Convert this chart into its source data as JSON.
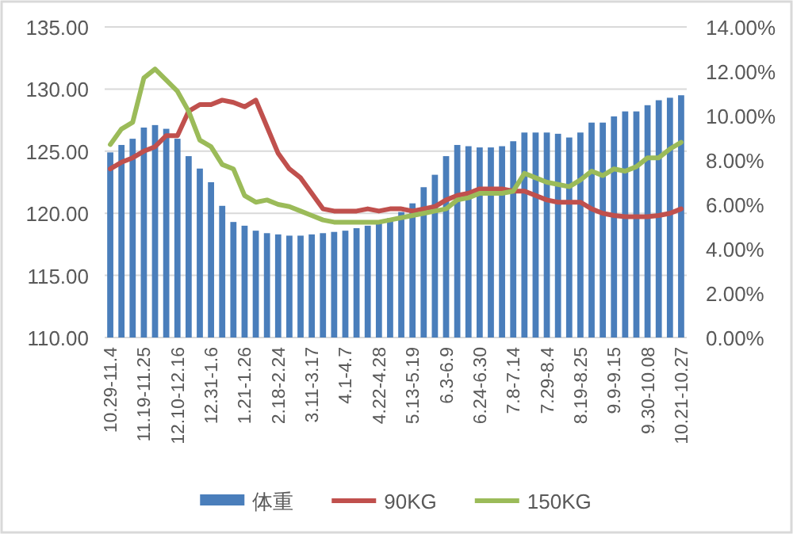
{
  "chart_data": {
    "type": "bar",
    "categories": [
      "10.29-11.4",
      null,
      null,
      "11.19-11.25",
      null,
      null,
      "12.10-12.16",
      null,
      null,
      "12.31-1.6",
      null,
      null,
      "1.21-1.26",
      null,
      null,
      "2.18-2.24",
      null,
      null,
      "3.11-3.17",
      null,
      null,
      "4.1-4.7",
      null,
      null,
      "4.22-4.28",
      null,
      null,
      "5.13-5.19",
      null,
      null,
      "6.3-6.9",
      null,
      null,
      "6.24-6.30",
      null,
      null,
      "7.8-7.14",
      null,
      null,
      "7.29-8.4",
      null,
      null,
      "8.19-8.25",
      null,
      null,
      "9.9-9.15",
      null,
      null,
      "9.30-10.08",
      null,
      null,
      "10.21-10.27"
    ],
    "series": [
      {
        "name": "体重",
        "color": "#4a7ebb",
        "values": [
          124.9,
          125.5,
          126.0,
          126.9,
          127.1,
          126.8,
          126.0,
          124.6,
          123.6,
          122.5,
          120.6,
          119.3,
          119.0,
          118.6,
          118.4,
          118.3,
          118.2,
          118.2,
          118.3,
          118.4,
          118.5,
          118.6,
          118.8,
          119.0,
          119.3,
          119.6,
          120.1,
          120.8,
          122.1,
          123.1,
          124.6,
          125.5,
          125.4,
          125.3,
          125.3,
          125.4,
          125.8,
          126.5,
          126.5,
          126.5,
          126.4,
          126.1,
          126.5,
          127.3,
          127.3,
          127.8,
          128.2,
          128.2,
          128.7,
          129.1,
          129.3,
          129.5
        ]
      },
      {
        "name": "90KG",
        "type": "line",
        "axis": "y2",
        "color": "#c0504d",
        "values": [
          7.6,
          7.9,
          8.1,
          8.4,
          8.6,
          9.1,
          9.1,
          10.2,
          10.5,
          10.5,
          10.7,
          10.6,
          10.4,
          10.7,
          9.5,
          8.3,
          7.6,
          7.2,
          6.5,
          5.8,
          5.7,
          5.7,
          5.7,
          5.8,
          5.7,
          5.8,
          5.8,
          5.7,
          5.8,
          5.9,
          6.2,
          6.4,
          6.5,
          6.7,
          6.7,
          6.7,
          6.6,
          6.6,
          6.4,
          6.2,
          6.1,
          6.1,
          6.1,
          5.8,
          5.6,
          5.5,
          5.45,
          5.45,
          5.45,
          5.5,
          5.6,
          5.8
        ]
      },
      {
        "name": "150KG",
        "type": "line",
        "axis": "y2",
        "color": "#9bbb59",
        "values": [
          8.7,
          9.4,
          9.7,
          11.7,
          12.1,
          11.6,
          11.1,
          10.2,
          8.9,
          8.6,
          7.8,
          7.6,
          6.4,
          6.1,
          6.2,
          6.0,
          5.9,
          5.7,
          5.5,
          5.3,
          5.2,
          5.2,
          5.2,
          5.2,
          5.2,
          5.3,
          5.4,
          5.5,
          5.6,
          5.7,
          5.8,
          6.2,
          6.3,
          6.5,
          6.5,
          6.5,
          6.6,
          7.4,
          7.2,
          7.0,
          6.9,
          6.8,
          7.1,
          7.5,
          7.3,
          7.6,
          7.5,
          7.7,
          8.1,
          8.1,
          8.5,
          8.8
        ]
      }
    ],
    "ylim": [
      110,
      135
    ],
    "yticks": [
      {
        "value": 110,
        "label": "110.00"
      },
      {
        "value": 115,
        "label": "115.00"
      },
      {
        "value": 120,
        "label": "120.00"
      },
      {
        "value": 125,
        "label": "125.00"
      },
      {
        "value": 130,
        "label": "130.00"
      },
      {
        "value": 135,
        "label": "135.00"
      }
    ],
    "y2lim": [
      0,
      14
    ],
    "y2ticks": [
      {
        "value": 0,
        "label": "0.00%"
      },
      {
        "value": 2,
        "label": "2.00%"
      },
      {
        "value": 4,
        "label": "4.00%"
      },
      {
        "value": 6,
        "label": "6.00%"
      },
      {
        "value": 8,
        "label": "8.00%"
      },
      {
        "value": 10,
        "label": "10.00%"
      },
      {
        "value": 12,
        "label": "12.00%"
      },
      {
        "value": 14,
        "label": "14.00%"
      }
    ],
    "grid": "y",
    "legend": "bottom"
  }
}
